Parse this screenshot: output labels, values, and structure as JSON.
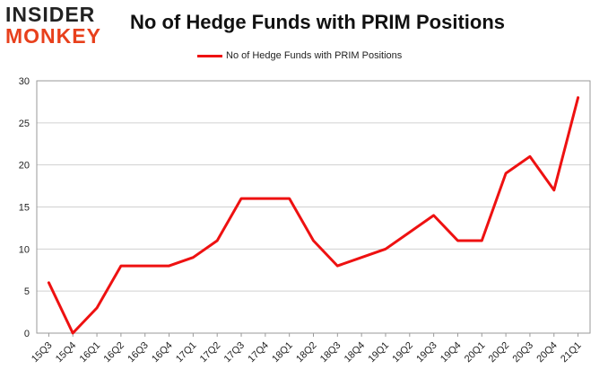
{
  "logo": {
    "line1": "INSIDER",
    "line2": "MONKEY"
  },
  "colors": {
    "series": "#ee1111",
    "grid": "#d0d0d0",
    "axis": "#9a9a9a",
    "logo_accent": "#e8401c"
  },
  "chart_data": {
    "type": "line",
    "title": "No of Hedge Funds with PRIM Positions",
    "xlabel": "",
    "ylabel": "",
    "ylim": [
      0,
      30
    ],
    "yticks": [
      0,
      5,
      10,
      15,
      20,
      25,
      30
    ],
    "grid": true,
    "legend_position": "top-center",
    "categories": [
      "15Q3",
      "15Q4",
      "16Q1",
      "16Q2",
      "16Q3",
      "16Q4",
      "17Q1",
      "17Q2",
      "17Q3",
      "17Q4",
      "18Q1",
      "18Q2",
      "18Q3",
      "18Q4",
      "19Q1",
      "19Q2",
      "19Q3",
      "19Q4",
      "20Q1",
      "20Q2",
      "20Q3",
      "20Q4",
      "21Q1"
    ],
    "series": [
      {
        "name": "No of Hedge Funds with PRIM Positions",
        "values": [
          6,
          0,
          3,
          8,
          8,
          8,
          9,
          11,
          16,
          16,
          16,
          11,
          8,
          9,
          10,
          12,
          14,
          11,
          11,
          19,
          21,
          17,
          28
        ]
      }
    ]
  }
}
